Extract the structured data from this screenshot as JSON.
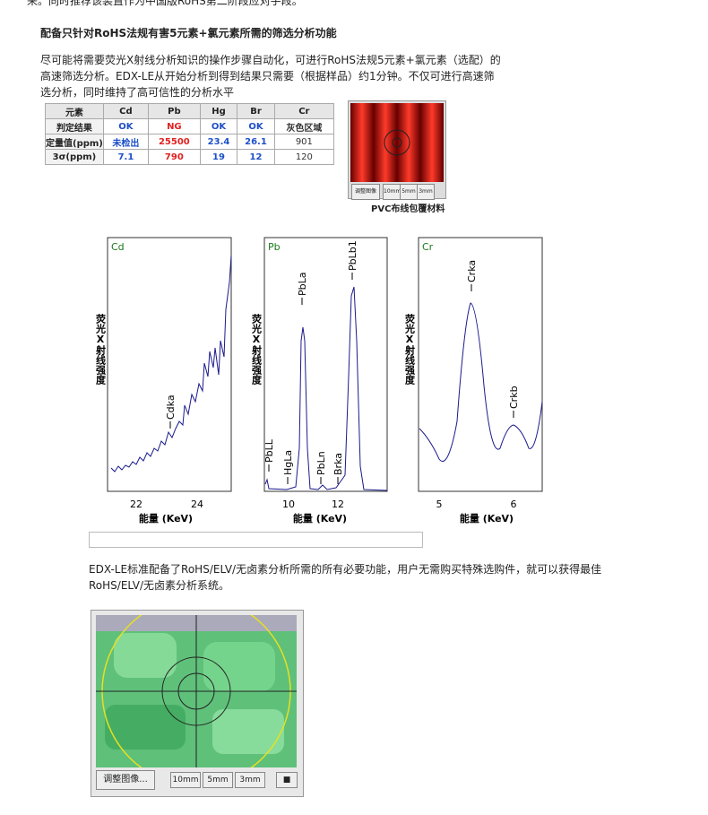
{
  "intro_fragment": "来。同时推荐该装置作为中国版RoHS第二阶段应对手段。",
  "heading": "配备只针对RoHS法规有害5元素+氯元素所需的筛选分析功能",
  "paragraph1": [
    "尽可能将需要荧光X射线分析知识的操作步骤自动化，可进行RoHS法规5元素+氯元素（选配）的",
    "高速筛选分析。EDX-LE从开始分析到得到结果只需要（根据样品）约1分钟。不仅可进行高速筛",
    "选分析，同时维持了高可信性的分析水平"
  ],
  "table": {
    "header": [
      "元素",
      "Cd",
      "Pb",
      "Hg",
      "Br",
      "Cr"
    ],
    "rows": [
      [
        "判定结果",
        "OK",
        "NG",
        "OK",
        "OK",
        "灰色区域"
      ],
      [
        "定量值(ppm)",
        "未检出",
        "25500",
        "23.4",
        "26.1",
        "901"
      ],
      [
        "3σ(ppm)",
        "7.1",
        "790",
        "19",
        "12",
        "120"
      ]
    ]
  },
  "pvc_image": {
    "buttons": [
      "调整图像",
      "10mm",
      "5mm",
      "3mm"
    ],
    "caption": "PVC布线包覆材料"
  },
  "spectra": {
    "y_label": "荧光X射线强度",
    "x_label": "能量 (KeV)",
    "panels": [
      {
        "element": "Cd",
        "ticks": [
          "22",
          "24"
        ],
        "peaks": [
          "Cdka"
        ]
      },
      {
        "element": "Pb",
        "ticks": [
          "10",
          "12"
        ],
        "peaks": [
          "PbLL",
          "HgLa",
          "PbLa",
          "PbLn",
          "Brka",
          "PbLb1"
        ]
      },
      {
        "element": "Cr",
        "ticks": [
          "5",
          "6"
        ],
        "peaks": [
          "Crka",
          "Crkb"
        ]
      }
    ]
  },
  "paragraph2": [
    "EDX-LE标准配备了RoHS/ELV/无卤素分析所需的所有必要功能，用户无需购买特殊选购件，就可以获得最佳",
    "RoHS/ELV/无卤素分析系统。"
  ],
  "camera_view": {
    "buttons": [
      "调整图像...",
      "10mm",
      "5mm",
      "3mm"
    ]
  }
}
